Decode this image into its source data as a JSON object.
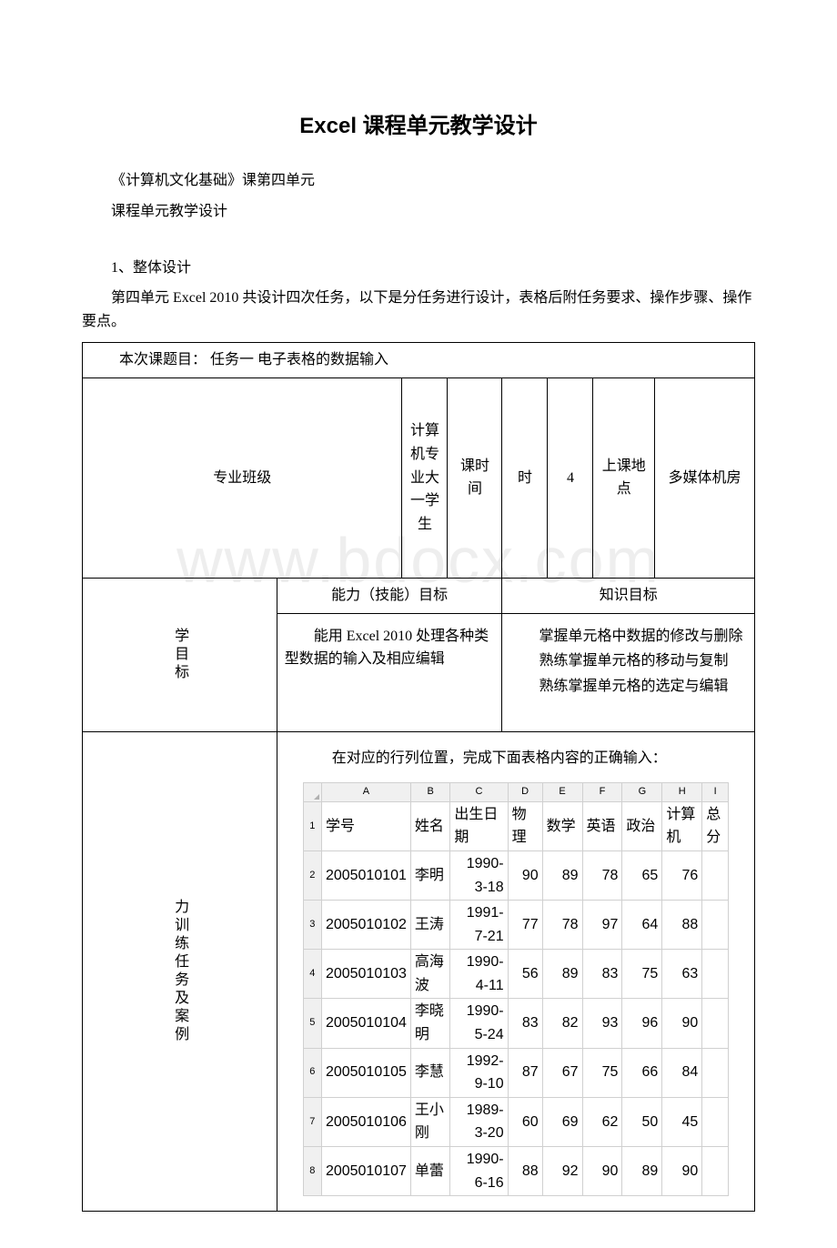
{
  "watermark": "www.bdocx.com",
  "title": "Excel 课程单元教学设计",
  "intro_line1": "《计算机文化基础》课第四单元",
  "intro_line2": "课程单元教学设计",
  "section1_heading": "1、整体设计",
  "section1_body": "第四单元 Excel 2010 共设计四次任务，以下是分任务进行设计，表格后附任务要求、操作步骤、操作要点。",
  "row_topic": "本次课题目：  任务一 电子表格的数据输入",
  "row2": {
    "col1_label": "专业班级",
    "col2_value": "计算机专业大一学生",
    "col3_label": "课时间",
    "col4_label": "时",
    "col5_value": "4",
    "col6_label": "上课地点",
    "col7_value": "多媒体机房"
  },
  "row3": {
    "skill_header": "能力（技能）目标",
    "knowledge_header": "知识目标"
  },
  "row4": {
    "side_label": "学目标",
    "skill_text": "能用 Excel 2010 处理各种类型数据的输入及相应编辑",
    "k1": "掌握单元格中数据的修改与删除",
    "k2": "熟练掌握单元格的移动与复制",
    "k3": "熟练掌握单元格的选定与编辑"
  },
  "row5": {
    "side_label": "力训练任务及案例",
    "intro": "在对应的行列位置，完成下面表格内容的正确输入："
  },
  "excel": {
    "columns": [
      "A",
      "B",
      "C",
      "D",
      "E",
      "F",
      "G",
      "H",
      "I"
    ],
    "headers": [
      "学号",
      "姓名",
      "出生日期",
      "物理",
      "数学",
      "英语",
      "政治",
      "计算机",
      "总分"
    ],
    "rows": [
      [
        "2005010101",
        "李明",
        "1990-3-18",
        "90",
        "89",
        "78",
        "65",
        "76",
        ""
      ],
      [
        "2005010102",
        "王涛",
        "1991-7-21",
        "77",
        "78",
        "97",
        "64",
        "88",
        ""
      ],
      [
        "2005010103",
        "高海波",
        "1990-4-11",
        "56",
        "89",
        "83",
        "75",
        "63",
        ""
      ],
      [
        "2005010104",
        "李晓明",
        "1990-5-24",
        "83",
        "82",
        "93",
        "96",
        "90",
        ""
      ],
      [
        "2005010105",
        "李慧",
        "1992-9-10",
        "87",
        "67",
        "75",
        "66",
        "84",
        ""
      ],
      [
        "2005010106",
        "王小刚",
        "1989-3-20",
        "60",
        "69",
        "62",
        "50",
        "45",
        ""
      ],
      [
        "2005010107",
        "单蕾",
        "1990-6-16",
        "88",
        "92",
        "90",
        "89",
        "90",
        ""
      ]
    ]
  }
}
